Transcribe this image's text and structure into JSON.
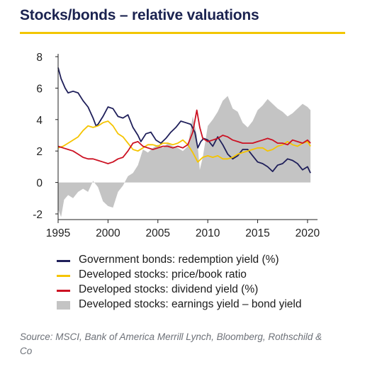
{
  "title": "Stocks/bonds – relative valuations",
  "source": "Source: MSCI, Bank of America Merrill Lynch, Bloomberg, Rothschild & Co",
  "colors": {
    "accent_rule": "#f2c600",
    "title": "#1b2350",
    "gov_bonds": "#1f1f5a",
    "price_book": "#f5c400",
    "dividend": "#cc1122",
    "earnings_area": "#c4c4c4"
  },
  "chart_data": {
    "type": "line",
    "xlim": [
      1995,
      2021
    ],
    "ylim": [
      -2,
      8
    ],
    "x_ticks": [
      "1995",
      "2000",
      "2005",
      "2010",
      "2015",
      "2020"
    ],
    "y_ticks": [
      "-2",
      "0",
      "2",
      "4",
      "6",
      "8"
    ],
    "grid": false,
    "legend_position": "bottom",
    "series": [
      {
        "name": "Government bonds: redemption yield (%)",
        "kind": "line",
        "color": "#1f1f5a",
        "points": [
          [
            1995.0,
            7.3
          ],
          [
            1995.3,
            6.6
          ],
          [
            1995.7,
            6.0
          ],
          [
            1996.0,
            5.7
          ],
          [
            1996.5,
            5.8
          ],
          [
            1997.0,
            5.7
          ],
          [
            1997.5,
            5.2
          ],
          [
            1998.0,
            4.8
          ],
          [
            1998.5,
            4.1
          ],
          [
            1998.8,
            3.6
          ],
          [
            1999.0,
            3.7
          ],
          [
            1999.5,
            4.2
          ],
          [
            2000.0,
            4.8
          ],
          [
            2000.5,
            4.7
          ],
          [
            2001.0,
            4.2
          ],
          [
            2001.5,
            4.1
          ],
          [
            2002.0,
            4.3
          ],
          [
            2002.5,
            3.5
          ],
          [
            2003.0,
            3.0
          ],
          [
            2003.3,
            2.6
          ],
          [
            2003.8,
            3.1
          ],
          [
            2004.3,
            3.2
          ],
          [
            2004.8,
            2.7
          ],
          [
            2005.3,
            2.5
          ],
          [
            2005.8,
            2.8
          ],
          [
            2006.3,
            3.2
          ],
          [
            2006.8,
            3.5
          ],
          [
            2007.3,
            3.9
          ],
          [
            2007.8,
            3.8
          ],
          [
            2008.3,
            3.7
          ],
          [
            2008.7,
            3.2
          ],
          [
            2009.0,
            2.2
          ],
          [
            2009.3,
            2.6
          ],
          [
            2009.6,
            2.8
          ],
          [
            2010.0,
            2.7
          ],
          [
            2010.5,
            2.3
          ],
          [
            2011.0,
            2.9
          ],
          [
            2011.5,
            2.4
          ],
          [
            2012.0,
            1.8
          ],
          [
            2012.5,
            1.5
          ],
          [
            2013.0,
            1.7
          ],
          [
            2013.5,
            2.1
          ],
          [
            2014.0,
            2.1
          ],
          [
            2014.5,
            1.7
          ],
          [
            2015.0,
            1.3
          ],
          [
            2015.5,
            1.2
          ],
          [
            2016.0,
            1.0
          ],
          [
            2016.5,
            0.7
          ],
          [
            2017.0,
            1.1
          ],
          [
            2017.5,
            1.2
          ],
          [
            2018.0,
            1.5
          ],
          [
            2018.5,
            1.4
          ],
          [
            2019.0,
            1.2
          ],
          [
            2019.5,
            0.8
          ],
          [
            2020.0,
            1.0
          ],
          [
            2020.3,
            0.6
          ]
        ]
      },
      {
        "name": "Developed stocks: price/book ratio",
        "kind": "line",
        "color": "#f5c400",
        "points": [
          [
            1995.0,
            2.2
          ],
          [
            1995.5,
            2.3
          ],
          [
            1996.0,
            2.5
          ],
          [
            1996.5,
            2.7
          ],
          [
            1997.0,
            2.9
          ],
          [
            1997.5,
            3.3
          ],
          [
            1998.0,
            3.6
          ],
          [
            1998.5,
            3.5
          ],
          [
            1999.0,
            3.6
          ],
          [
            1999.5,
            3.8
          ],
          [
            2000.0,
            3.9
          ],
          [
            2000.5,
            3.6
          ],
          [
            2001.0,
            3.1
          ],
          [
            2001.5,
            2.9
          ],
          [
            2002.0,
            2.5
          ],
          [
            2002.5,
            2.1
          ],
          [
            2003.0,
            2.0
          ],
          [
            2003.5,
            2.2
          ],
          [
            2004.0,
            2.4
          ],
          [
            2004.5,
            2.4
          ],
          [
            2005.0,
            2.3
          ],
          [
            2005.5,
            2.5
          ],
          [
            2006.0,
            2.5
          ],
          [
            2006.5,
            2.4
          ],
          [
            2007.0,
            2.5
          ],
          [
            2007.5,
            2.7
          ],
          [
            2008.0,
            2.4
          ],
          [
            2008.5,
            1.9
          ],
          [
            2009.0,
            1.3
          ],
          [
            2009.5,
            1.6
          ],
          [
            2010.0,
            1.7
          ],
          [
            2010.5,
            1.6
          ],
          [
            2011.0,
            1.7
          ],
          [
            2011.5,
            1.5
          ],
          [
            2012.0,
            1.5
          ],
          [
            2012.5,
            1.6
          ],
          [
            2013.0,
            1.8
          ],
          [
            2013.5,
            1.9
          ],
          [
            2014.0,
            2.0
          ],
          [
            2014.5,
            2.1
          ],
          [
            2015.0,
            2.2
          ],
          [
            2015.5,
            2.2
          ],
          [
            2016.0,
            2.0
          ],
          [
            2016.5,
            2.1
          ],
          [
            2017.0,
            2.3
          ],
          [
            2017.5,
            2.4
          ],
          [
            2018.0,
            2.6
          ],
          [
            2018.5,
            2.4
          ],
          [
            2019.0,
            2.3
          ],
          [
            2019.5,
            2.5
          ],
          [
            2020.0,
            2.6
          ],
          [
            2020.3,
            2.3
          ]
        ]
      },
      {
        "name": "Developed stocks: dividend yield (%)",
        "kind": "line",
        "color": "#cc1122",
        "points": [
          [
            1995.0,
            2.3
          ],
          [
            1995.5,
            2.2
          ],
          [
            1996.0,
            2.1
          ],
          [
            1996.5,
            2.0
          ],
          [
            1997.0,
            1.8
          ],
          [
            1997.5,
            1.6
          ],
          [
            1998.0,
            1.5
          ],
          [
            1998.5,
            1.5
          ],
          [
            1999.0,
            1.4
          ],
          [
            1999.5,
            1.3
          ],
          [
            2000.0,
            1.2
          ],
          [
            2000.5,
            1.3
          ],
          [
            2001.0,
            1.5
          ],
          [
            2001.5,
            1.6
          ],
          [
            2002.0,
            2.0
          ],
          [
            2002.5,
            2.5
          ],
          [
            2003.0,
            2.6
          ],
          [
            2003.5,
            2.3
          ],
          [
            2004.0,
            2.2
          ],
          [
            2004.5,
            2.1
          ],
          [
            2005.0,
            2.2
          ],
          [
            2005.5,
            2.3
          ],
          [
            2006.0,
            2.3
          ],
          [
            2006.5,
            2.2
          ],
          [
            2007.0,
            2.3
          ],
          [
            2007.5,
            2.2
          ],
          [
            2008.0,
            2.4
          ],
          [
            2008.5,
            3.2
          ],
          [
            2008.9,
            4.6
          ],
          [
            2009.2,
            3.5
          ],
          [
            2009.5,
            2.8
          ],
          [
            2010.0,
            2.6
          ],
          [
            2010.5,
            2.7
          ],
          [
            2011.0,
            2.8
          ],
          [
            2011.5,
            3.0
          ],
          [
            2012.0,
            2.9
          ],
          [
            2012.5,
            2.7
          ],
          [
            2013.0,
            2.6
          ],
          [
            2013.5,
            2.5
          ],
          [
            2014.0,
            2.5
          ],
          [
            2014.5,
            2.5
          ],
          [
            2015.0,
            2.6
          ],
          [
            2015.5,
            2.7
          ],
          [
            2016.0,
            2.8
          ],
          [
            2016.5,
            2.7
          ],
          [
            2017.0,
            2.5
          ],
          [
            2017.5,
            2.5
          ],
          [
            2018.0,
            2.4
          ],
          [
            2018.5,
            2.7
          ],
          [
            2019.0,
            2.6
          ],
          [
            2019.5,
            2.5
          ],
          [
            2020.0,
            2.7
          ],
          [
            2020.3,
            2.5
          ]
        ]
      },
      {
        "name": "Developed stocks: earnings yield – bond yield",
        "kind": "area",
        "color": "#c4c4c4",
        "points": [
          [
            1995.0,
            -1.7
          ],
          [
            1995.3,
            -2.2
          ],
          [
            1995.6,
            -1.1
          ],
          [
            1996.0,
            -0.8
          ],
          [
            1996.5,
            -1.0
          ],
          [
            1997.0,
            -0.6
          ],
          [
            1997.5,
            -0.4
          ],
          [
            1998.0,
            -0.6
          ],
          [
            1998.5,
            0.1
          ],
          [
            1999.0,
            -0.3
          ],
          [
            1999.5,
            -1.2
          ],
          [
            2000.0,
            -1.5
          ],
          [
            2000.5,
            -1.6
          ],
          [
            2001.0,
            -0.6
          ],
          [
            2001.5,
            -0.2
          ],
          [
            2002.0,
            0.4
          ],
          [
            2002.5,
            0.6
          ],
          [
            2003.0,
            1.1
          ],
          [
            2003.5,
            2.1
          ],
          [
            2004.0,
            1.9
          ],
          [
            2004.5,
            2.2
          ],
          [
            2005.0,
            2.4
          ],
          [
            2005.5,
            2.2
          ],
          [
            2006.0,
            2.5
          ],
          [
            2006.5,
            2.3
          ],
          [
            2007.0,
            2.2
          ],
          [
            2007.5,
            2.0
          ],
          [
            2008.0,
            2.3
          ],
          [
            2008.5,
            4.2
          ],
          [
            2008.9,
            3.0
          ],
          [
            2009.2,
            0.8
          ],
          [
            2009.5,
            1.6
          ],
          [
            2010.0,
            3.6
          ],
          [
            2010.5,
            4.0
          ],
          [
            2011.0,
            4.5
          ],
          [
            2011.5,
            5.2
          ],
          [
            2012.0,
            5.5
          ],
          [
            2012.5,
            4.7
          ],
          [
            2013.0,
            4.5
          ],
          [
            2013.5,
            3.8
          ],
          [
            2014.0,
            3.5
          ],
          [
            2014.5,
            3.9
          ],
          [
            2015.0,
            4.6
          ],
          [
            2015.5,
            4.9
          ],
          [
            2016.0,
            5.3
          ],
          [
            2016.5,
            5.0
          ],
          [
            2017.0,
            4.7
          ],
          [
            2017.5,
            4.5
          ],
          [
            2018.0,
            4.2
          ],
          [
            2018.5,
            4.4
          ],
          [
            2019.0,
            4.7
          ],
          [
            2019.5,
            5.0
          ],
          [
            2020.0,
            4.8
          ],
          [
            2020.3,
            4.6
          ]
        ]
      }
    ]
  }
}
